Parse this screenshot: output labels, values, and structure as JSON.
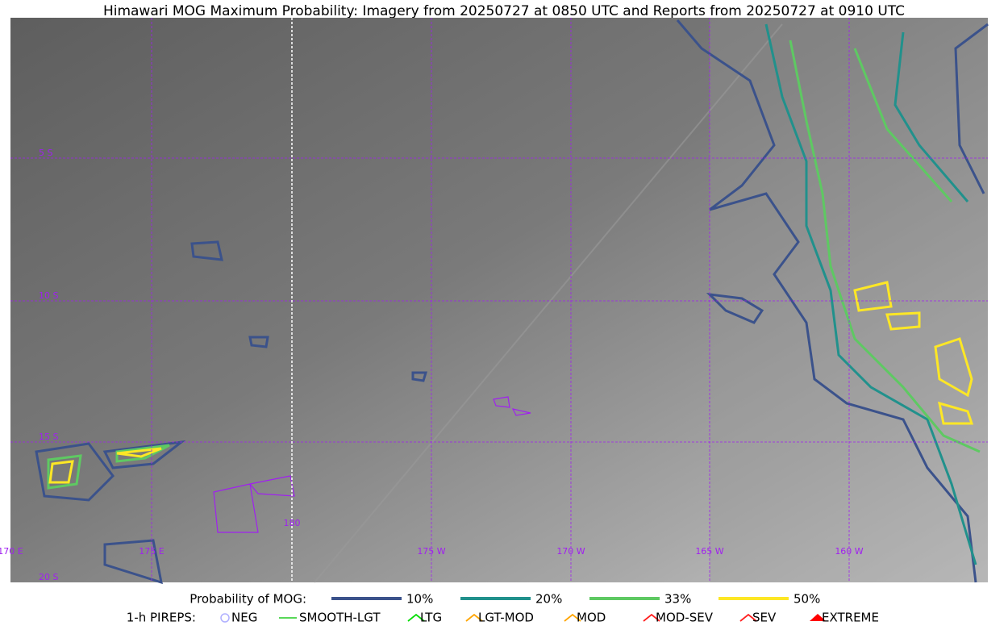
{
  "title": "Himawari MOG Maximum Probability: Imagery from 20250727 at 0850 UTC and Reports from 20250727 at 0910 UTC",
  "grid_labels": {
    "lat": [
      "5 S",
      "10 S",
      "15 S",
      "20 S"
    ],
    "lon": [
      "170 E",
      "175 E",
      "180",
      "175 W",
      "170 W",
      "165 W",
      "160 W"
    ]
  },
  "legend": {
    "probability": {
      "label": "Probability of MOG:",
      "items": [
        {
          "label": "10%",
          "color": "#3b528b"
        },
        {
          "label": "20%",
          "color": "#21918c"
        },
        {
          "label": "33%",
          "color": "#5ec962"
        },
        {
          "label": "50%",
          "color": "#fde725"
        }
      ]
    },
    "pireps": {
      "label": "1-h PIREPS:",
      "items": [
        {
          "label": "NEG",
          "color": "#b0b0ff"
        },
        {
          "label": "SMOOTH-LGT",
          "color": "#22cc22"
        },
        {
          "label": "LTG",
          "color": "#00dd00"
        },
        {
          "label": "LGT-MOD",
          "color": "#ffa500"
        },
        {
          "label": "MOD",
          "color": "#ffa500"
        },
        {
          "label": "MOD-SEV",
          "color": "#ff2020"
        },
        {
          "label": "SEV",
          "color": "#ff2020"
        },
        {
          "label": "EXTREME",
          "color": "#ff0000"
        }
      ]
    }
  }
}
